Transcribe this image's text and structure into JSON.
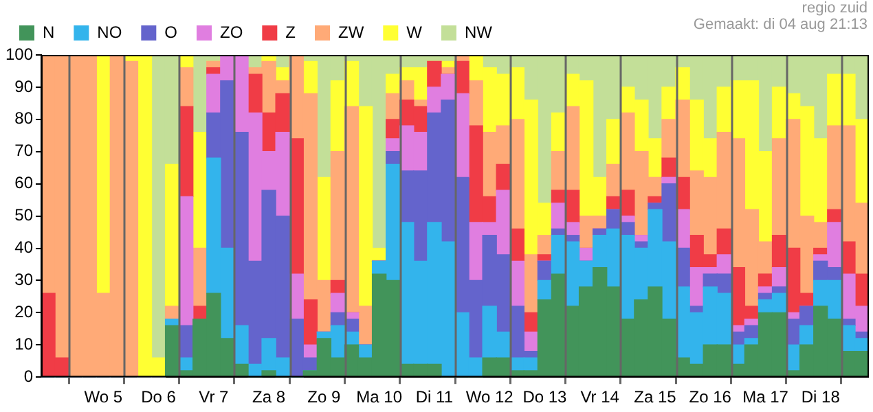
{
  "chart_data": {
    "type": "bar",
    "stacked": true,
    "legend": "top",
    "grid": "x",
    "ylim": [
      0,
      100
    ],
    "yticks": [
      0,
      10,
      20,
      30,
      40,
      50,
      60,
      70,
      80,
      90,
      100
    ],
    "annotations": [
      "regio zuid",
      "Gemaakt: di 04 aug 21:13"
    ],
    "categories": [
      null,
      null,
      null,
      null,
      "Wo 5",
      null,
      null,
      null,
      "Do 6",
      null,
      null,
      null,
      "Vr 7",
      null,
      null,
      null,
      "Za 8",
      null,
      null,
      null,
      "Zo 9",
      null,
      null,
      null,
      "Ma 10",
      null,
      null,
      null,
      "Di 11",
      null,
      null,
      null,
      "Wo 12",
      null,
      null,
      null,
      "Do 13",
      null,
      null,
      null,
      "Vr 14",
      null,
      null,
      null,
      "Za 15",
      null,
      null,
      null,
      "Zo 16",
      null,
      null,
      null,
      "Ma 17",
      null,
      null,
      null,
      "Di 18",
      null,
      null,
      null
    ],
    "series": [
      {
        "name": "N",
        "color": "#42945a",
        "values": [
          0,
          0,
          0,
          0,
          0,
          0,
          0,
          0,
          0,
          16,
          2,
          18,
          26,
          12,
          4,
          0,
          2,
          0,
          0,
          2,
          12,
          6,
          10,
          6,
          32,
          30,
          4,
          4,
          4,
          0,
          0,
          0,
          6,
          6,
          2,
          2,
          24,
          32,
          22,
          28,
          34,
          28,
          18,
          24,
          28,
          18,
          6,
          4,
          10,
          10,
          4,
          10,
          20,
          20,
          2,
          10,
          22,
          18,
          8,
          8
        ]
      },
      {
        "name": "NO",
        "color": "#33b4ec",
        "values": [
          0,
          0,
          0,
          0,
          0,
          0,
          0,
          0,
          0,
          2,
          4,
          0,
          42,
          28,
          12,
          4,
          10,
          6,
          0,
          0,
          2,
          10,
          4,
          4,
          4,
          36,
          44,
          32,
          44,
          42,
          20,
          6,
          16,
          8,
          4,
          4,
          6,
          12,
          20,
          8,
          10,
          18,
          26,
          16,
          24,
          24,
          22,
          16,
          18,
          16,
          6,
          2,
          4,
          6,
          8,
          6,
          8,
          12,
          8,
          4
        ]
      },
      {
        "name": "O",
        "color": "#6464cc",
        "values": [
          0,
          0,
          0,
          0,
          0,
          0,
          0,
          0,
          0,
          0,
          10,
          0,
          14,
          52,
          60,
          32,
          46,
          44,
          18,
          4,
          0,
          4,
          4,
          0,
          0,
          4,
          16,
          28,
          34,
          44,
          42,
          24,
          22,
          24,
          16,
          2,
          6,
          2,
          2,
          0,
          2,
          6,
          4,
          2,
          2,
          18,
          12,
          2,
          4,
          6,
          4,
          4,
          2,
          2,
          8,
          6,
          6,
          4,
          2,
          2
        ]
      },
      {
        "name": "ZO",
        "color": "#e07ee0",
        "values": [
          0,
          0,
          0,
          0,
          0,
          0,
          0,
          0,
          0,
          0,
          40,
          0,
          12,
          8,
          24,
          46,
          12,
          26,
          14,
          4,
          0,
          6,
          2,
          0,
          0,
          4,
          14,
          12,
          8,
          8,
          26,
          18,
          4,
          20,
          14,
          6,
          0,
          8,
          4,
          4,
          0,
          0,
          2,
          2,
          0,
          2,
          12,
          12,
          2,
          6,
          2,
          2,
          2,
          6,
          2,
          0,
          2,
          14,
          14,
          8
        ]
      },
      {
        "name": "Z",
        "color": "#f03c46",
        "values": [
          26,
          6,
          0,
          0,
          0,
          0,
          0,
          0,
          0,
          0,
          28,
          4,
          2,
          0,
          0,
          12,
          12,
          12,
          42,
          14,
          0,
          4,
          0,
          0,
          0,
          6,
          8,
          8,
          8,
          0,
          10,
          30,
          8,
          8,
          10,
          6,
          2,
          4,
          10,
          0,
          0,
          4,
          8,
          0,
          2,
          6,
          10,
          10,
          4,
          8,
          18,
          4,
          4,
          10,
          20,
          4,
          2,
          4,
          10,
          10
        ]
      },
      {
        "name": "ZW",
        "color": "#ffaa77",
        "values": [
          74,
          94,
          100,
          100,
          26,
          100,
          98,
          0,
          0,
          4,
          12,
          18,
          2,
          0,
          0,
          2,
          16,
          4,
          26,
          64,
          16,
          40,
          64,
          12,
          0,
          8,
          6,
          2,
          0,
          2,
          2,
          14,
          20,
          12,
          34,
          18,
          6,
          12,
          26,
          10,
          4,
          10,
          24,
          26,
          6,
          12,
          24,
          20,
          24,
          30,
          40,
          30,
          10,
          30,
          40,
          24,
          8,
          26,
          36,
          22
        ]
      },
      {
        "name": "W",
        "color": "#ffff33",
        "values": [
          0,
          0,
          0,
          0,
          74,
          0,
          2,
          100,
          6,
          44,
          4,
          36,
          0,
          0,
          0,
          0,
          2,
          4,
          0,
          10,
          32,
          22,
          14,
          62,
          4,
          6,
          4,
          10,
          0,
          2,
          0,
          8,
          20,
          16,
          16,
          48,
          10,
          12,
          10,
          42,
          12,
          14,
          8,
          16,
          12,
          10,
          10,
          22,
          12,
          14,
          18,
          40,
          28,
          16,
          8,
          34,
          26,
          16,
          16,
          26
        ]
      },
      {
        "name": "NW",
        "color": "#c3df98",
        "values": [
          0,
          0,
          0,
          0,
          0,
          0,
          0,
          0,
          94,
          34,
          0,
          24,
          2,
          0,
          0,
          4,
          0,
          4,
          0,
          2,
          38,
          8,
          2,
          16,
          60,
          6,
          4,
          4,
          2,
          2,
          0,
          0,
          4,
          6,
          4,
          14,
          46,
          18,
          6,
          8,
          38,
          20,
          10,
          14,
          26,
          10,
          4,
          14,
          26,
          10,
          8,
          8,
          30,
          10,
          12,
          16,
          26,
          6,
          6,
          20
        ]
      }
    ]
  }
}
